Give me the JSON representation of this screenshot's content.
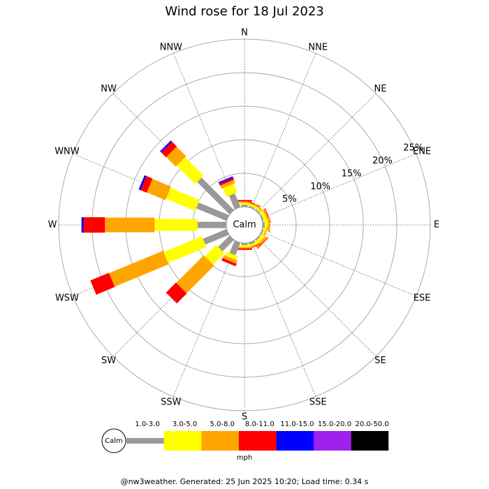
{
  "chart_data": {
    "type": "windrose",
    "title": "Wind rose for 18 Jul 2023",
    "directions": [
      "N",
      "NNE",
      "NE",
      "ENE",
      "E",
      "ESE",
      "SE",
      "SSE",
      "S",
      "SSW",
      "SW",
      "WSW",
      "W",
      "WNW",
      "NW",
      "NNW"
    ],
    "center_label": "Calm",
    "rlim": [
      0,
      25
    ],
    "rticks": [
      {
        "value": 5,
        "label": "5%"
      },
      {
        "value": 10,
        "label": "10%"
      },
      {
        "value": 15,
        "label": "15%"
      },
      {
        "value": 20,
        "label": "20%"
      },
      {
        "value": 25,
        "label": "25%"
      }
    ],
    "series": [
      {
        "name": "1.0-3.0",
        "color": "#999999",
        "values": [
          0.3,
          0.2,
          0.2,
          0.2,
          0.3,
          0.2,
          0.2,
          0.3,
          0.3,
          2.0,
          2.4,
          3.8,
          4.3,
          4.9,
          6.8,
          2.2
        ]
      },
      {
        "name": "3.0-5.0",
        "color": "#ffff00",
        "values": [
          0.3,
          0.3,
          0.3,
          0.5,
          0.5,
          0.3,
          0.5,
          0.3,
          0.3,
          0.6,
          2.4,
          6.2,
          6.4,
          4.7,
          3.9,
          1.4
        ]
      },
      {
        "name": "5.0-8.0",
        "color": "#ffa500",
        "values": [
          0.2,
          0.2,
          0.2,
          0.3,
          0.3,
          0.2,
          0.4,
          0.2,
          0.2,
          0.5,
          5.8,
          8.7,
          7.4,
          3.0,
          2.0,
          0.5
        ]
      },
      {
        "name": "8.0-11.0",
        "color": "#ff0000",
        "values": [
          0.2,
          0.1,
          0,
          0.1,
          0,
          0,
          0.1,
          0.1,
          0.2,
          0.4,
          2.1,
          3.0,
          3.2,
          1.0,
          1.0,
          0.3
        ]
      },
      {
        "name": "11.0-15.0",
        "color": "#0000ff",
        "values": [
          0,
          0,
          0,
          0,
          0,
          0,
          0,
          0,
          0,
          0,
          0,
          0,
          0.3,
          0.3,
          0.2,
          0.2
        ]
      },
      {
        "name": "15.0-20.0",
        "color": "#a020f0",
        "values": [
          0,
          0,
          0,
          0,
          0,
          0,
          0,
          0,
          0,
          0,
          0,
          0,
          0,
          0,
          0.1,
          0.1
        ]
      },
      {
        "name": "20.0-50.0",
        "color": "#000000",
        "values": [
          0,
          0,
          0,
          0,
          0,
          0,
          0,
          0,
          0,
          0,
          0,
          0,
          0,
          0,
          0,
          0
        ]
      }
    ],
    "units": "mph",
    "footer": "@nw3weather. Generated: 25 Jun 2025 10:20; Load time: 0.34 s"
  }
}
